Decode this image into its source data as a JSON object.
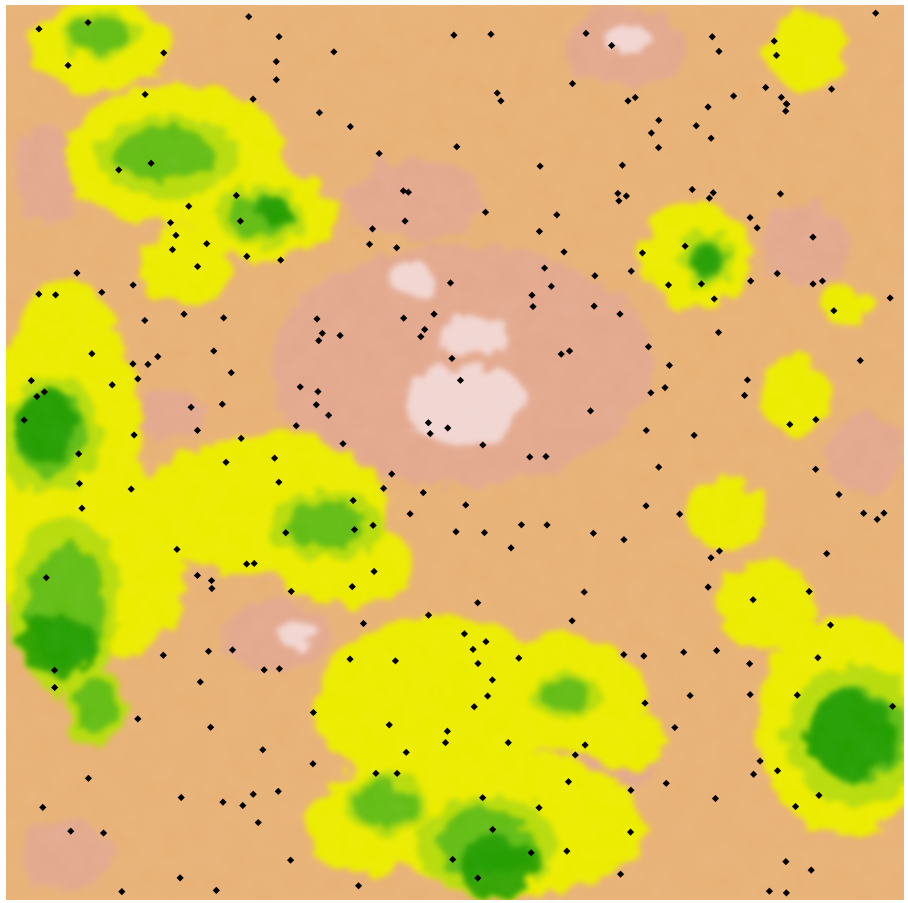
{
  "map": {
    "type": "terrain-elevation-heatmap",
    "legend": "none",
    "title": "",
    "palette": {
      "lowland_dark": "#1f9a00",
      "lowland": "#5cba12",
      "midland": "#b8dc0a",
      "foothill": "#ecec00",
      "upland": "#e8b277",
      "highland": "#e3a98e",
      "peak": "#f4dede"
    },
    "marker": {
      "shape": "diamond",
      "color": "#000000",
      "count": 292
    }
  }
}
